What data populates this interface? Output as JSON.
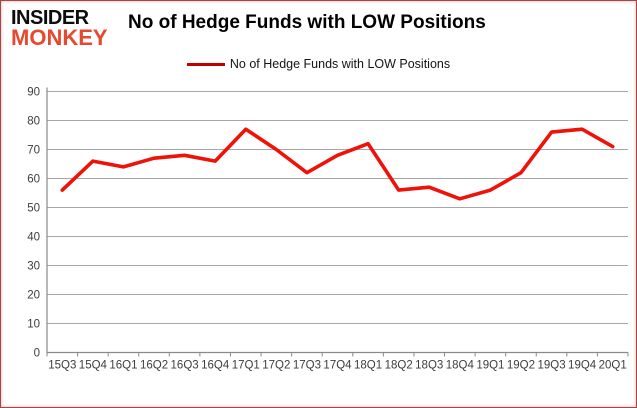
{
  "header": {
    "logo": {
      "line1": "INSIDER",
      "line2": "MONKEY",
      "line1_color": "#0d0d0d",
      "line2_color": "#e8482f"
    },
    "title": "No of Hedge Funds with LOW Positions"
  },
  "legend": {
    "label": "No of Hedge Funds with LOW Positions",
    "marker_color": "#c00000",
    "position": "top-center"
  },
  "chart_data": {
    "type": "line",
    "title": "No of Hedge Funds with LOW Positions",
    "categories": [
      "15Q3",
      "15Q4",
      "16Q1",
      "16Q2",
      "16Q3",
      "16Q4",
      "17Q1",
      "17Q2",
      "17Q3",
      "17Q4",
      "18Q1",
      "18Q2",
      "18Q3",
      "18Q4",
      "19Q1",
      "19Q2",
      "19Q3",
      "19Q4",
      "20Q1"
    ],
    "series": [
      {
        "name": "No of Hedge Funds with LOW Positions",
        "values": [
          56,
          66,
          64,
          67,
          68,
          66,
          77,
          70,
          62,
          68,
          72,
          56,
          57,
          53,
          56,
          62,
          76,
          77,
          71
        ],
        "color": "#ee1208"
      }
    ],
    "xlabel": "",
    "ylabel": "",
    "ylim": [
      0,
      90
    ],
    "ytick_step": 10,
    "y_tick_labels": [
      0,
      10,
      20,
      30,
      40,
      50,
      60,
      70,
      80,
      90
    ],
    "grid": true,
    "legend_position": "top"
  },
  "colors": {
    "gridline": "#a6a6a6",
    "axis": "#898989",
    "tick_text": "#3d3d3d",
    "border": "#a04848",
    "background": "#ffffff"
  }
}
